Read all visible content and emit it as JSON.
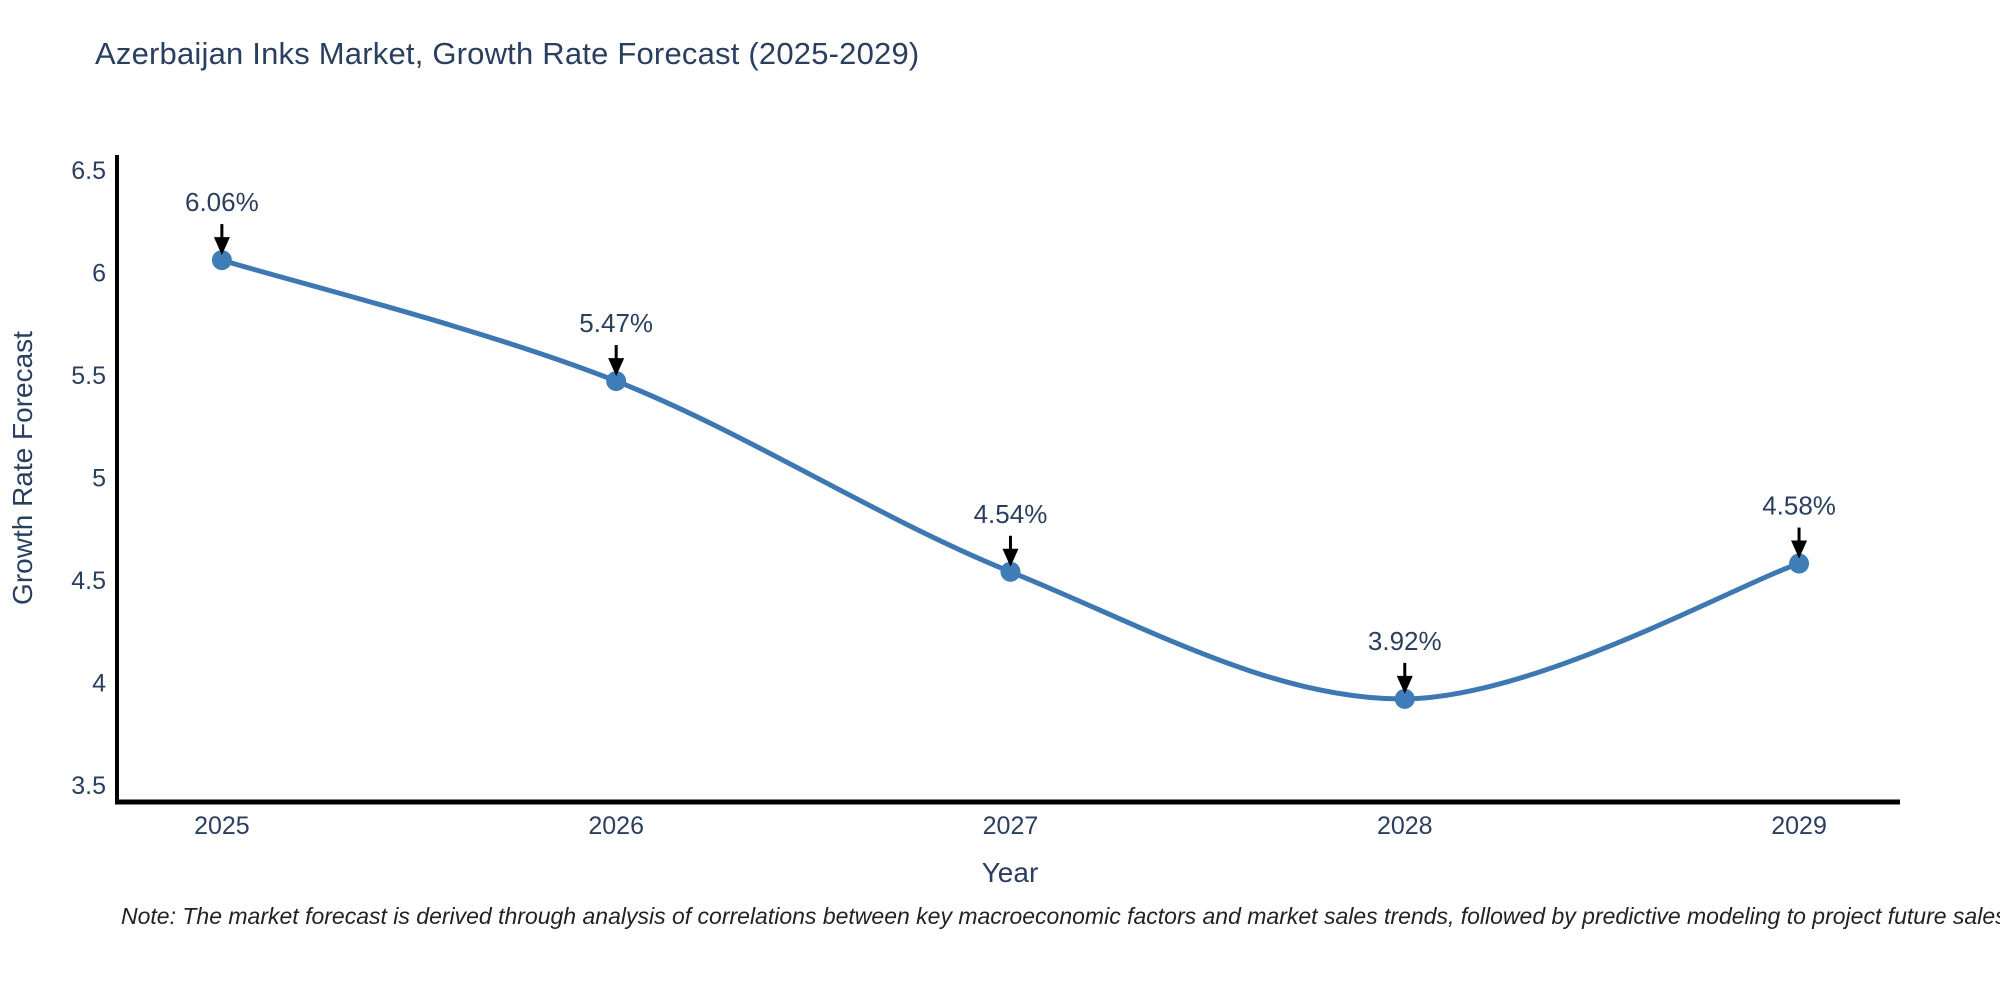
{
  "note": "Note: The market forecast is derived through analysis of correlations between key macroeconomic factors and market sales trends, followed by predictive modeling to project future sales",
  "chart_data": {
    "type": "line",
    "title": "Azerbaijan Inks Market, Growth Rate Forecast (2025-2029)",
    "xlabel": "Year",
    "ylabel": "Growth Rate Forecast",
    "categories": [
      "2025",
      "2026",
      "2027",
      "2028",
      "2029"
    ],
    "x": [
      2025,
      2026,
      2027,
      2028,
      2029
    ],
    "values": [
      6.06,
      5.47,
      4.54,
      3.92,
      4.58
    ],
    "point_labels": [
      "6.06%",
      "5.47%",
      "4.54%",
      "3.92%",
      "4.58%"
    ],
    "ytick_values": [
      3.5,
      4,
      4.5,
      5,
      5.5,
      6,
      6.5
    ],
    "ytick_labels": [
      "3.5",
      "4",
      "4.5",
      "5",
      "5.5",
      "6",
      "6.5"
    ],
    "x_range": [
      2024.734,
      2029.256
    ],
    "y_range": [
      3.417,
      6.558
    ],
    "line_shape": "spline",
    "grid": false,
    "legend": "none",
    "colors": {
      "line": "#3d78b2",
      "marker": "#3f7db8",
      "axis": "#000000",
      "text": "#2a3f5f",
      "arrow": "#000000",
      "note_text": "#222222",
      "background": "#ffffff"
    }
  }
}
